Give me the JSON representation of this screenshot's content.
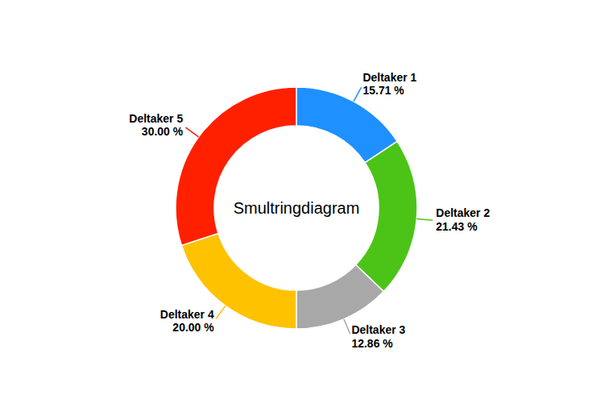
{
  "chart_data": {
    "type": "pie",
    "title": "Smultringdiagram",
    "categories": [
      "Deltaker 1",
      "Deltaker 2",
      "Deltaker 3",
      "Deltaker 4",
      "Deltaker 5"
    ],
    "values": [
      15.71,
      21.43,
      12.86,
      20.0,
      30.0
    ],
    "value_labels": [
      "15.71 %",
      "21.43 %",
      "12.86 %",
      "20.00 %",
      "30.00 %"
    ],
    "colors": [
      "#1E90FF",
      "#4CC417",
      "#A8A8A8",
      "#FFC200",
      "#FF2000"
    ]
  }
}
